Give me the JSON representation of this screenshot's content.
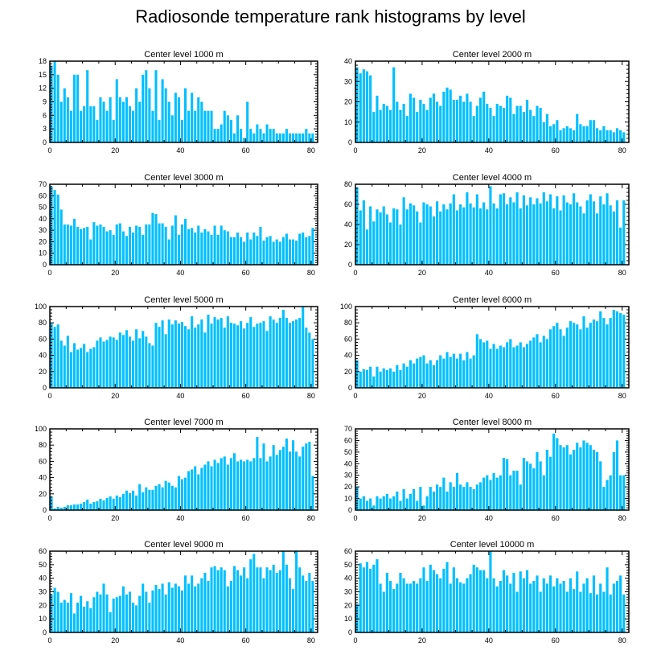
{
  "title": "Radiosonde temperature rank histograms by level",
  "colors": {
    "bar": "#00bfff",
    "bar_edge": "#ffffff",
    "axis": "#000000",
    "background": "#ffffff"
  },
  "chart_data": [
    {
      "type": "bar",
      "title": "Center level 1000 m",
      "xlim": [
        0,
        82
      ],
      "ylim": [
        0,
        18
      ],
      "xticks": [
        0,
        20,
        40,
        60,
        80
      ],
      "yticks": [
        0,
        3,
        6,
        9,
        12,
        15,
        18
      ],
      "values": [
        17,
        18,
        15,
        9,
        12,
        10,
        7,
        15,
        15,
        7,
        8,
        16,
        8,
        8,
        5,
        10,
        9,
        7,
        10,
        5,
        14,
        10,
        9,
        10,
        8,
        7,
        12,
        9,
        15,
        16,
        12,
        7,
        16,
        5,
        14,
        12,
        9,
        6,
        11,
        10,
        5,
        12,
        7,
        11,
        7,
        10,
        9,
        7,
        7,
        7,
        3,
        3,
        4,
        7,
        6,
        5,
        2,
        6,
        3,
        1,
        9,
        3,
        2,
        4,
        3,
        2,
        4,
        3,
        3,
        2,
        2,
        2,
        3,
        2,
        2,
        2,
        2,
        2,
        3,
        2,
        2
      ]
    },
    {
      "type": "bar",
      "title": "Center level 2000 m",
      "xlim": [
        0,
        82
      ],
      "ylim": [
        0,
        40
      ],
      "xticks": [
        0,
        20,
        40,
        60,
        80
      ],
      "yticks": [
        0,
        10,
        20,
        30,
        40
      ],
      "values": [
        37,
        34,
        36,
        35,
        33,
        15,
        23,
        16,
        19,
        18,
        16,
        37,
        20,
        16,
        19,
        13,
        24,
        22,
        15,
        21,
        19,
        16,
        22,
        24,
        20,
        18,
        25,
        27,
        26,
        21,
        21,
        23,
        20,
        24,
        20,
        13,
        18,
        22,
        25,
        19,
        17,
        13,
        19,
        18,
        17,
        23,
        22,
        14,
        18,
        18,
        15,
        21,
        16,
        13,
        18,
        17,
        10,
        14,
        8,
        9,
        11,
        6,
        7,
        8,
        7,
        6,
        14,
        9,
        8,
        8,
        11,
        11,
        7,
        6,
        8,
        6,
        6,
        5,
        7,
        6,
        5
      ]
    },
    {
      "type": "bar",
      "title": "Center level 3000 m",
      "xlim": [
        0,
        82
      ],
      "ylim": [
        0,
        70
      ],
      "xticks": [
        0,
        20,
        40,
        60,
        80
      ],
      "yticks": [
        0,
        10,
        20,
        30,
        40,
        50,
        60,
        70
      ],
      "values": [
        68,
        65,
        61,
        48,
        35,
        35,
        34,
        40,
        33,
        31,
        32,
        33,
        22,
        37,
        34,
        35,
        33,
        29,
        30,
        26,
        35,
        36,
        29,
        25,
        33,
        28,
        34,
        33,
        26,
        35,
        35,
        45,
        44,
        36,
        36,
        33,
        22,
        34,
        43,
        26,
        35,
        40,
        31,
        32,
        28,
        34,
        28,
        31,
        29,
        26,
        34,
        26,
        34,
        30,
        29,
        24,
        24,
        28,
        24,
        20,
        28,
        22,
        28,
        25,
        33,
        21,
        24,
        25,
        20,
        22,
        20,
        24,
        27,
        22,
        22,
        21,
        27,
        28,
        24,
        25,
        32
      ]
    },
    {
      "type": "bar",
      "title": "Center level 4000 m",
      "xlim": [
        0,
        82
      ],
      "ylim": [
        0,
        80
      ],
      "xticks": [
        0,
        20,
        40,
        60,
        80
      ],
      "yticks": [
        0,
        20,
        40,
        60,
        80
      ],
      "values": [
        77,
        54,
        64,
        35,
        58,
        43,
        55,
        52,
        58,
        50,
        42,
        56,
        55,
        40,
        67,
        55,
        61,
        59,
        53,
        42,
        62,
        60,
        58,
        48,
        63,
        53,
        60,
        55,
        61,
        70,
        54,
        60,
        57,
        72,
        61,
        57,
        70,
        56,
        62,
        55,
        78,
        61,
        56,
        70,
        71,
        60,
        67,
        62,
        72,
        56,
        69,
        59,
        67,
        60,
        66,
        61,
        72,
        63,
        70,
        56,
        68,
        54,
        69,
        62,
        60,
        71,
        62,
        58,
        51,
        64,
        70,
        63,
        51,
        68,
        60,
        71,
        59,
        53,
        64,
        37,
        64
      ]
    },
    {
      "type": "bar",
      "title": "Center level 5000 m",
      "xlim": [
        0,
        82
      ],
      "ylim": [
        0,
        100
      ],
      "xticks": [
        0,
        20,
        40,
        60,
        80
      ],
      "yticks": [
        0,
        20,
        40,
        60,
        80,
        100
      ],
      "values": [
        80,
        75,
        78,
        58,
        52,
        64,
        44,
        55,
        47,
        49,
        54,
        44,
        48,
        50,
        58,
        62,
        57,
        59,
        63,
        62,
        59,
        68,
        65,
        71,
        63,
        58,
        72,
        61,
        70,
        63,
        55,
        52,
        80,
        75,
        83,
        66,
        84,
        78,
        83,
        79,
        81,
        76,
        72,
        88,
        74,
        78,
        84,
        68,
        90,
        79,
        87,
        84,
        86,
        74,
        88,
        80,
        79,
        77,
        82,
        73,
        80,
        87,
        75,
        79,
        80,
        82,
        70,
        88,
        84,
        80,
        86,
        96,
        86,
        80,
        82,
        84,
        86,
        100,
        74,
        68,
        60
      ]
    },
    {
      "type": "bar",
      "title": "Center level 6000 m",
      "xlim": [
        0,
        82
      ],
      "ylim": [
        0,
        100
      ],
      "xticks": [
        0,
        20,
        40,
        60,
        80
      ],
      "yticks": [
        0,
        20,
        40,
        60,
        80,
        100
      ],
      "values": [
        34,
        20,
        23,
        22,
        26,
        14,
        26,
        20,
        24,
        22,
        24,
        20,
        28,
        22,
        30,
        26,
        34,
        30,
        36,
        38,
        40,
        30,
        34,
        28,
        34,
        40,
        36,
        44,
        38,
        42,
        36,
        42,
        34,
        44,
        36,
        40,
        66,
        60,
        56,
        58,
        48,
        54,
        48,
        52,
        50,
        56,
        60,
        50,
        52,
        56,
        50,
        54,
        58,
        62,
        66,
        56,
        64,
        60,
        72,
        76,
        80,
        72,
        64,
        74,
        82,
        80,
        78,
        72,
        88,
        74,
        80,
        84,
        82,
        94,
        86,
        78,
        86,
        96,
        94,
        92,
        90
      ]
    },
    {
      "type": "bar",
      "title": "Center level 7000 m",
      "xlim": [
        0,
        82
      ],
      "ylim": [
        0,
        100
      ],
      "xticks": [
        0,
        20,
        40,
        60,
        80
      ],
      "yticks": [
        0,
        20,
        40,
        60,
        80,
        100
      ],
      "values": [
        17,
        2,
        4,
        3,
        4,
        6,
        6,
        7,
        7,
        8,
        10,
        13,
        8,
        10,
        11,
        14,
        12,
        15,
        17,
        14,
        18,
        16,
        20,
        24,
        21,
        24,
        18,
        32,
        22,
        28,
        25,
        25,
        30,
        32,
        28,
        36,
        34,
        30,
        28,
        42,
        38,
        40,
        48,
        50,
        54,
        44,
        52,
        56,
        60,
        54,
        62,
        58,
        64,
        66,
        56,
        64,
        70,
        60,
        62,
        60,
        62,
        60,
        64,
        90,
        64,
        82,
        60,
        66,
        80,
        68,
        74,
        78,
        88,
        72,
        86,
        72,
        66,
        78,
        82,
        84,
        42
      ]
    },
    {
      "type": "bar",
      "title": "Center level 8000 m",
      "xlim": [
        0,
        82
      ],
      "ylim": [
        0,
        70
      ],
      "xticks": [
        0,
        20,
        40,
        60,
        80
      ],
      "yticks": [
        0,
        10,
        20,
        30,
        40,
        50,
        60,
        70
      ],
      "values": [
        20,
        10,
        12,
        8,
        10,
        4,
        12,
        10,
        12,
        14,
        10,
        12,
        16,
        8,
        18,
        10,
        14,
        18,
        8,
        20,
        4,
        12,
        20,
        16,
        22,
        20,
        28,
        16,
        24,
        20,
        32,
        22,
        20,
        24,
        20,
        18,
        22,
        24,
        28,
        30,
        26,
        32,
        28,
        30,
        45,
        44,
        30,
        34,
        34,
        22,
        45,
        42,
        40,
        36,
        50,
        42,
        30,
        52,
        46,
        66,
        62,
        56,
        54,
        56,
        48,
        52,
        58,
        54,
        60,
        58,
        56,
        52,
        50,
        42,
        20,
        26,
        30,
        50,
        60,
        30,
        30
      ]
    },
    {
      "type": "bar",
      "title": "Center level 9000 m",
      "xlim": [
        0,
        82
      ],
      "ylim": [
        0,
        60
      ],
      "xticks": [
        0,
        20,
        40,
        60,
        80
      ],
      "yticks": [
        0,
        10,
        20,
        30,
        40,
        50,
        60
      ],
      "values": [
        28,
        33,
        30,
        22,
        24,
        22,
        29,
        14,
        22,
        27,
        19,
        23,
        18,
        26,
        30,
        28,
        36,
        28,
        15,
        25,
        26,
        27,
        34,
        28,
        30,
        22,
        20,
        27,
        36,
        30,
        22,
        31,
        35,
        32,
        36,
        28,
        37,
        33,
        36,
        34,
        31,
        42,
        36,
        42,
        34,
        36,
        40,
        44,
        38,
        48,
        49,
        46,
        48,
        46,
        34,
        38,
        49,
        46,
        42,
        48,
        40,
        54,
        58,
        48,
        48,
        40,
        48,
        46,
        50,
        44,
        46,
        60,
        50,
        40,
        32,
        60,
        48,
        42,
        38,
        44,
        38
      ]
    },
    {
      "type": "bar",
      "title": "Center level 10000 m",
      "xlim": [
        0,
        82
      ],
      "ylim": [
        0,
        60
      ],
      "xticks": [
        0,
        20,
        40,
        60,
        80
      ],
      "yticks": [
        0,
        10,
        20,
        30,
        40,
        50,
        60
      ],
      "values": [
        21,
        51,
        48,
        52,
        47,
        50,
        54,
        36,
        30,
        44,
        38,
        32,
        36,
        44,
        40,
        36,
        36,
        38,
        36,
        40,
        48,
        38,
        50,
        46,
        43,
        40,
        47,
        52,
        36,
        48,
        40,
        37,
        36,
        40,
        43,
        50,
        48,
        46,
        46,
        40,
        60,
        40,
        34,
        38,
        46,
        42,
        36,
        44,
        30,
        45,
        40,
        46,
        36,
        38,
        42,
        30,
        40,
        36,
        42,
        34,
        40,
        36,
        38,
        30,
        40,
        32,
        45,
        30,
        36,
        40,
        29,
        42,
        28,
        36,
        30,
        48,
        28,
        36,
        38,
        42,
        28
      ]
    }
  ]
}
